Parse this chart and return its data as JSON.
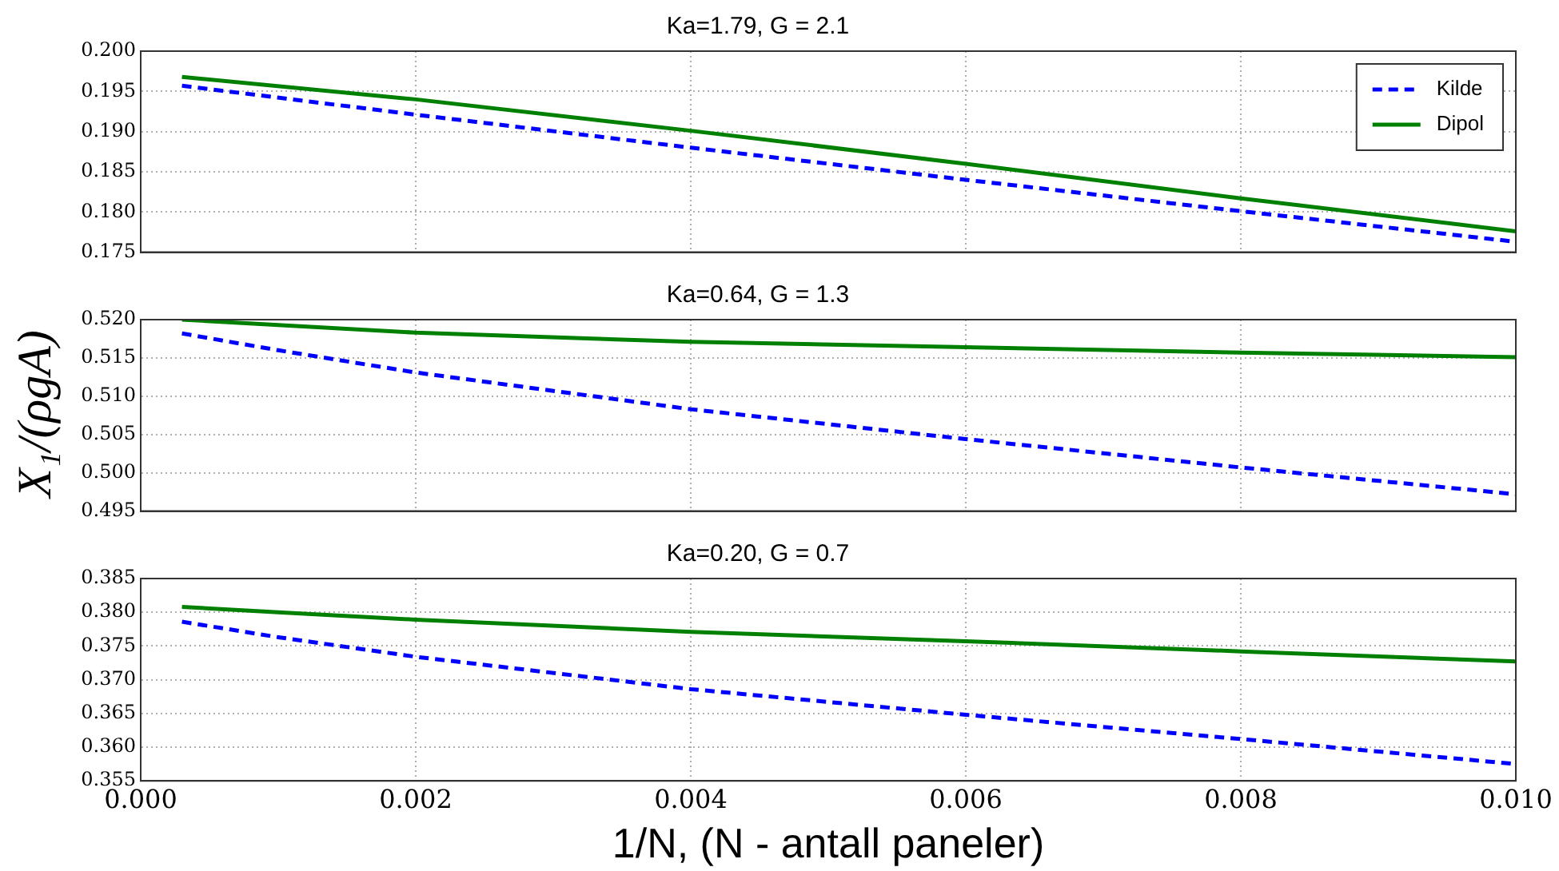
{
  "chart_data": [
    {
      "type": "line",
      "title": "Ka=1.79, G = 2.1",
      "xlim": [
        0,
        0.01
      ],
      "xticks": [
        0,
        0.002,
        0.004,
        0.006,
        0.008,
        0.01
      ],
      "ylim": [
        0.175,
        0.2
      ],
      "yticks": [
        {
          "value": 0.175,
          "label": "0.175"
        },
        {
          "value": 0.18,
          "label": "0.180"
        },
        {
          "value": 0.185,
          "label": "0.185"
        },
        {
          "value": 0.19,
          "label": "0.190"
        },
        {
          "value": 0.195,
          "label": "0.195"
        },
        {
          "value": 0.2,
          "label": "0.200"
        }
      ],
      "grid": true,
      "tick_labels": "y",
      "legend": "top right",
      "marker": "none",
      "series": [
        {
          "name": "Kilde",
          "color": "#0000ff",
          "line_style": "dashed",
          "x": [
            0.0003,
            0.002,
            0.004,
            0.006,
            0.008,
            0.01
          ],
          "values": [
            0.1957,
            0.1921,
            0.188,
            0.184,
            0.1801,
            0.1763
          ]
        },
        {
          "name": "Dipol",
          "color": "#008000",
          "line_style": "solid",
          "x": [
            0.0003,
            0.002,
            0.004,
            0.006,
            0.008,
            0.01
          ],
          "values": [
            0.1968,
            0.194,
            0.1901,
            0.186,
            0.1817,
            0.1776
          ]
        }
      ]
    },
    {
      "type": "line",
      "title": "Ka=0.64, G = 1.3",
      "ylabel": "X₁/(ρgA)",
      "xlim": [
        0,
        0.01
      ],
      "xticks": [
        0,
        0.002,
        0.004,
        0.006,
        0.008,
        0.01
      ],
      "ylim": [
        0.495,
        0.52
      ],
      "yticks": [
        {
          "value": 0.495,
          "label": "0.495"
        },
        {
          "value": 0.5,
          "label": "0.500"
        },
        {
          "value": 0.505,
          "label": "0.505"
        },
        {
          "value": 0.51,
          "label": "0.510"
        },
        {
          "value": 0.515,
          "label": "0.515"
        },
        {
          "value": 0.52,
          "label": "0.520"
        }
      ],
      "grid": true,
      "tick_labels": "y",
      "marker": "none",
      "series": [
        {
          "color": "#0000ff",
          "line_style": "dashed",
          "x": [
            0.0003,
            0.001,
            0.002,
            0.004,
            0.006,
            0.008,
            0.01
          ],
          "values": [
            0.5182,
            0.516,
            0.5131,
            0.5083,
            0.5044,
            0.5007,
            0.4972
          ]
        },
        {
          "color": "#008000",
          "line_style": "solid",
          "x": [
            0.0003,
            0.001,
            0.002,
            0.004,
            0.006,
            0.008,
            0.01
          ],
          "values": [
            0.52,
            0.5193,
            0.5183,
            0.5171,
            0.5164,
            0.5157,
            0.5151
          ]
        }
      ]
    },
    {
      "type": "line",
      "title": "Ka=0.20, G = 0.7",
      "xlabel": "1/N, (N - antall paneler)",
      "xlim": [
        0,
        0.01
      ],
      "xticks": [
        {
          "value": 0,
          "label": "0.000"
        },
        {
          "value": 0.002,
          "label": "0.002"
        },
        {
          "value": 0.004,
          "label": "0.004"
        },
        {
          "value": 0.006,
          "label": "0.006"
        },
        {
          "value": 0.008,
          "label": "0.008"
        },
        {
          "value": 0.01,
          "label": "0.010"
        }
      ],
      "ylim": [
        0.355,
        0.385
      ],
      "yticks": [
        {
          "value": 0.355,
          "label": "0.355"
        },
        {
          "value": 0.36,
          "label": "0.360"
        },
        {
          "value": 0.365,
          "label": "0.365"
        },
        {
          "value": 0.37,
          "label": "0.370"
        },
        {
          "value": 0.375,
          "label": "0.375"
        },
        {
          "value": 0.38,
          "label": "0.380"
        },
        {
          "value": 0.385,
          "label": "0.385"
        }
      ],
      "grid": true,
      "marker": "none",
      "series": [
        {
          "color": "#0000ff",
          "line_style": "dashed",
          "x": [
            0.0003,
            0.001,
            0.002,
            0.004,
            0.006,
            0.008,
            0.01
          ],
          "values": [
            0.3786,
            0.3763,
            0.3734,
            0.3686,
            0.3648,
            0.3612,
            0.3575
          ]
        },
        {
          "color": "#008000",
          "line_style": "solid",
          "x": [
            0.0003,
            0.001,
            0.002,
            0.004,
            0.006,
            0.008,
            0.01
          ],
          "values": [
            0.3808,
            0.38,
            0.3789,
            0.3771,
            0.3757,
            0.3742,
            0.3727
          ]
        }
      ]
    }
  ]
}
